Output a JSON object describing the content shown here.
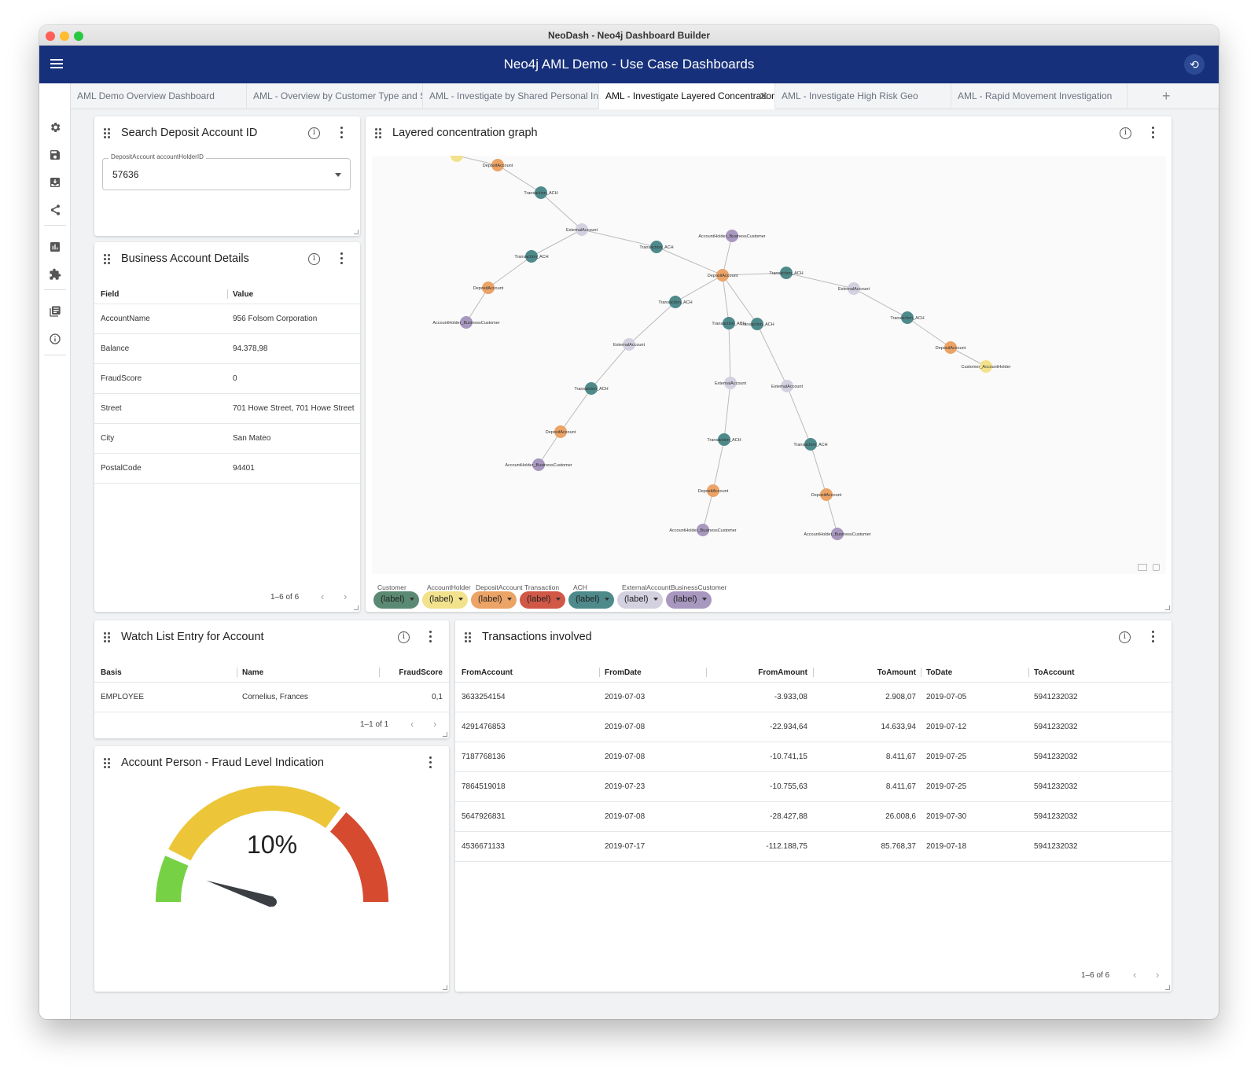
{
  "window": {
    "title": "NeoDash - Neo4j Dashboard Builder"
  },
  "appbar": {
    "title": "Neo4j AML Demo - Use Case Dashboards",
    "connection_icon": "database-connection-icon"
  },
  "tabs": [
    {
      "label": "AML Demo Overview Dashboard"
    },
    {
      "label": "AML - Overview by Customer Type and Segment"
    },
    {
      "label": "AML - Investigate by Shared Personal Information"
    },
    {
      "label": "AML - Investigate Layered Concentration"
    },
    {
      "label": "AML - Investigate High Risk Geo"
    },
    {
      "label": "AML - Rapid Movement Investigation"
    }
  ],
  "sidebar": {
    "icons": [
      "settings-icon",
      "save-icon",
      "load-icon",
      "share-icon",
      "report-icon",
      "extensions-icon",
      "documentation-icon",
      "about-icon"
    ]
  },
  "search_card": {
    "title": "Search Deposit Account ID",
    "field_label": "DepositAccount accountHolderID",
    "field_value": "57636"
  },
  "business_card": {
    "title": "Business Account Details",
    "headers": [
      "Field",
      "Value"
    ],
    "rows": [
      [
        "AccountName",
        "956 Folsom Corporation"
      ],
      [
        "Balance",
        "94.378,98"
      ],
      [
        "FraudScore",
        "0"
      ],
      [
        "Street",
        "701 Howe Street, 701 Howe Street"
      ],
      [
        "City",
        "San Mateo"
      ],
      [
        "PostalCode",
        "94401"
      ]
    ],
    "pager": "1–6 of 6"
  },
  "graph_card": {
    "title": "Layered concentration graph",
    "legend": [
      {
        "label": "Customer",
        "pill": "(label)",
        "color": "#5b8a72"
      },
      {
        "label": "AccountHolder",
        "pill": "(label)",
        "color": "#f2e28c"
      },
      {
        "label": "DepositAccount",
        "pill": "(label)",
        "color": "#eba366"
      },
      {
        "label": "Transaction",
        "pill": "(label)",
        "color": "#d15847"
      },
      {
        "label": "ACH",
        "pill": "(label)",
        "color": "#4f8a8b"
      },
      {
        "label": "ExternalAccount",
        "pill": "(label)",
        "color": "#d3d0e0"
      },
      {
        "label": "BusinessCustomer",
        "pill": "(label)",
        "color": "#a898c0"
      }
    ]
  },
  "watch_card": {
    "title": "Watch List Entry for Account",
    "headers": [
      "Basis",
      "Name",
      "FraudScore"
    ],
    "rows": [
      [
        "EMPLOYEE",
        "Cornelius, Frances",
        "0,1"
      ]
    ],
    "pager": "1–1 of 1"
  },
  "gauge_card": {
    "title": "Account Person - Fraud Level Indication",
    "value_text": "10%",
    "value": 0.1,
    "colors": {
      "low": "#76d244",
      "mid": "#ecc638",
      "high": "#d64a2f",
      "needle": "#3b3f44"
    }
  },
  "tx_card": {
    "title": "Transactions involved",
    "headers": [
      "FromAccount",
      "FromDate",
      "FromAmount",
      "ToAmount",
      "ToDate",
      "ToAccount"
    ],
    "rows": [
      [
        "3633254154",
        "2019-07-03",
        "-3.933,08",
        "2.908,07",
        "2019-07-05",
        "5941232032"
      ],
      [
        "4291476853",
        "2019-07-08",
        "-22.934,64",
        "14.633,94",
        "2019-07-12",
        "5941232032"
      ],
      [
        "7187768136",
        "2019-07-08",
        "-10.741,15",
        "8.411,67",
        "2019-07-25",
        "5941232032"
      ],
      [
        "7864519018",
        "2019-07-23",
        "-10.755,63",
        "8.411,67",
        "2019-07-25",
        "5941232032"
      ],
      [
        "5647926831",
        "2019-07-08",
        "-28.427,88",
        "26.008,6",
        "2019-07-30",
        "5941232032"
      ],
      [
        "4536671133",
        "2019-07-17",
        "-112.188,75",
        "85.768,37",
        "2019-07-18",
        "5941232032"
      ]
    ],
    "pager": "1–6 of 6"
  }
}
